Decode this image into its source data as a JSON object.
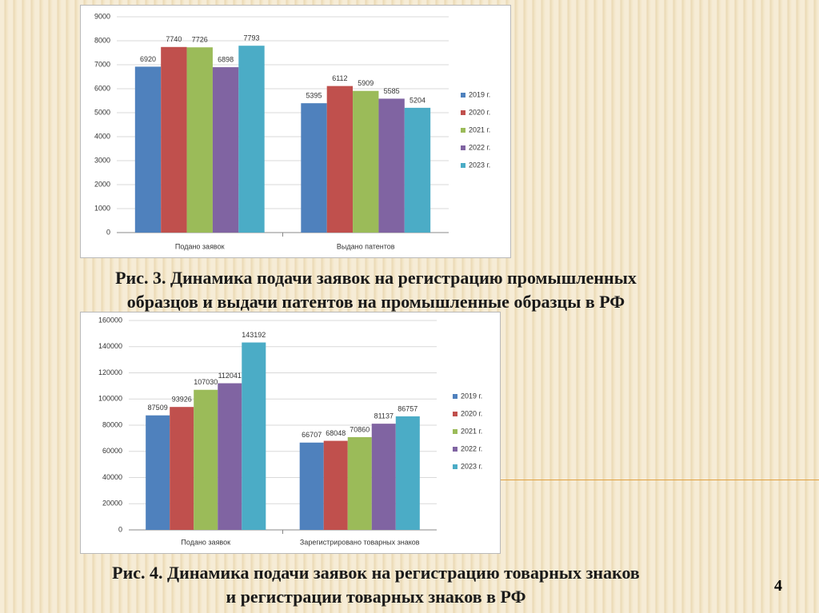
{
  "chart_data": [
    {
      "type": "bar",
      "categories": [
        "Подано заявок",
        "Выдано патентов"
      ],
      "series": [
        {
          "name": "2019 г.",
          "color": "#4f81bd",
          "values": [
            6920,
            5395
          ]
        },
        {
          "name": "2020 г.",
          "color": "#c0504d",
          "values": [
            7740,
            6112
          ]
        },
        {
          "name": "2021 г.",
          "color": "#9bbb59",
          "values": [
            7726,
            5909
          ]
        },
        {
          "name": "2022 г.",
          "color": "#8064a2",
          "values": [
            6898,
            5585
          ]
        },
        {
          "name": "2023 г.",
          "color": "#4bacc6",
          "values": [
            7793,
            5204
          ]
        }
      ],
      "ylim": [
        0,
        9000
      ],
      "yticks": [
        0,
        1000,
        2000,
        3000,
        4000,
        5000,
        6000,
        7000,
        8000,
        9000
      ],
      "grid": true,
      "legend": "right"
    },
    {
      "type": "bar",
      "categories": [
        "Подано заявок",
        "Зарегистрировано товарных знаков"
      ],
      "series": [
        {
          "name": "2019 г.",
          "color": "#4f81bd",
          "values": [
            87509,
            66707
          ]
        },
        {
          "name": "2020 г.",
          "color": "#c0504d",
          "values": [
            93926,
            68048
          ]
        },
        {
          "name": "2021 г.",
          "color": "#9bbb59",
          "values": [
            107030,
            70860
          ]
        },
        {
          "name": "2022 г.",
          "color": "#8064a2",
          "values": [
            112041,
            81137
          ]
        },
        {
          "name": "2023 г.",
          "color": "#4bacc6",
          "values": [
            143192,
            86757
          ]
        }
      ],
      "ylim": [
        0,
        160000
      ],
      "yticks": [
        0,
        20000,
        40000,
        60000,
        80000,
        100000,
        120000,
        140000,
        160000
      ],
      "grid": true,
      "legend": "right"
    }
  ],
  "captions": [
    [
      "Рис. 3. Динамика подачи заявок на регистрацию промышленных",
      "образцов и выдачи патентов на промышленные образцы в РФ"
    ],
    [
      "Рис. 4. Динамика подачи заявок на регистрацию товарных знаков",
      "и регистрации товарных знаков в РФ"
    ]
  ],
  "page_number": "4"
}
